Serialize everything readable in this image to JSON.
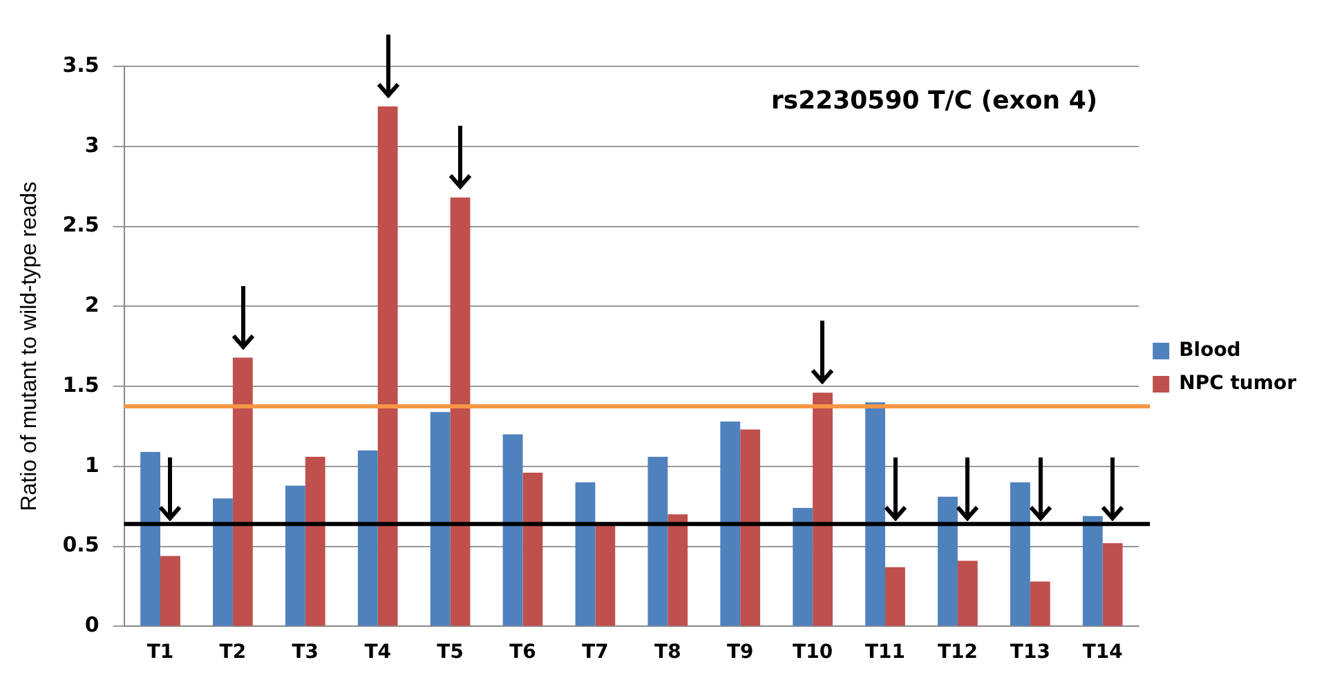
{
  "chart_data": {
    "type": "bar",
    "title": "rs2230590 T/C (exon 4)",
    "ylabel": "Ratio of mutant to wild-type reads",
    "categories": [
      "T1",
      "T2",
      "T3",
      "T4",
      "T5",
      "T6",
      "T7",
      "T8",
      "T9",
      "T10",
      "T11",
      "T12",
      "T13",
      "T14"
    ],
    "series": [
      {
        "name": "Blood",
        "color": "#4f81bd",
        "values": [
          1.09,
          0.8,
          0.88,
          1.1,
          1.34,
          1.2,
          0.9,
          1.06,
          1.28,
          0.74,
          1.4,
          0.81,
          0.9,
          0.69
        ]
      },
      {
        "name": "NPC tumor",
        "color": "#c0504d",
        "values": [
          0.44,
          1.68,
          1.06,
          3.25,
          2.68,
          0.96,
          0.64,
          0.7,
          1.23,
          1.46,
          0.37,
          0.41,
          0.28,
          0.52
        ]
      }
    ],
    "ylim": [
      0,
      3.5
    ],
    "yticks": [
      0,
      0.5,
      1,
      1.5,
      2,
      2.5,
      3,
      3.5
    ],
    "grid": "y",
    "legend": "right",
    "ref_lines": [
      {
        "axis": "y",
        "value": 1.375,
        "color": "#f79646"
      },
      {
        "axis": "y",
        "value": 0.64,
        "color": "#000000"
      }
    ]
  }
}
